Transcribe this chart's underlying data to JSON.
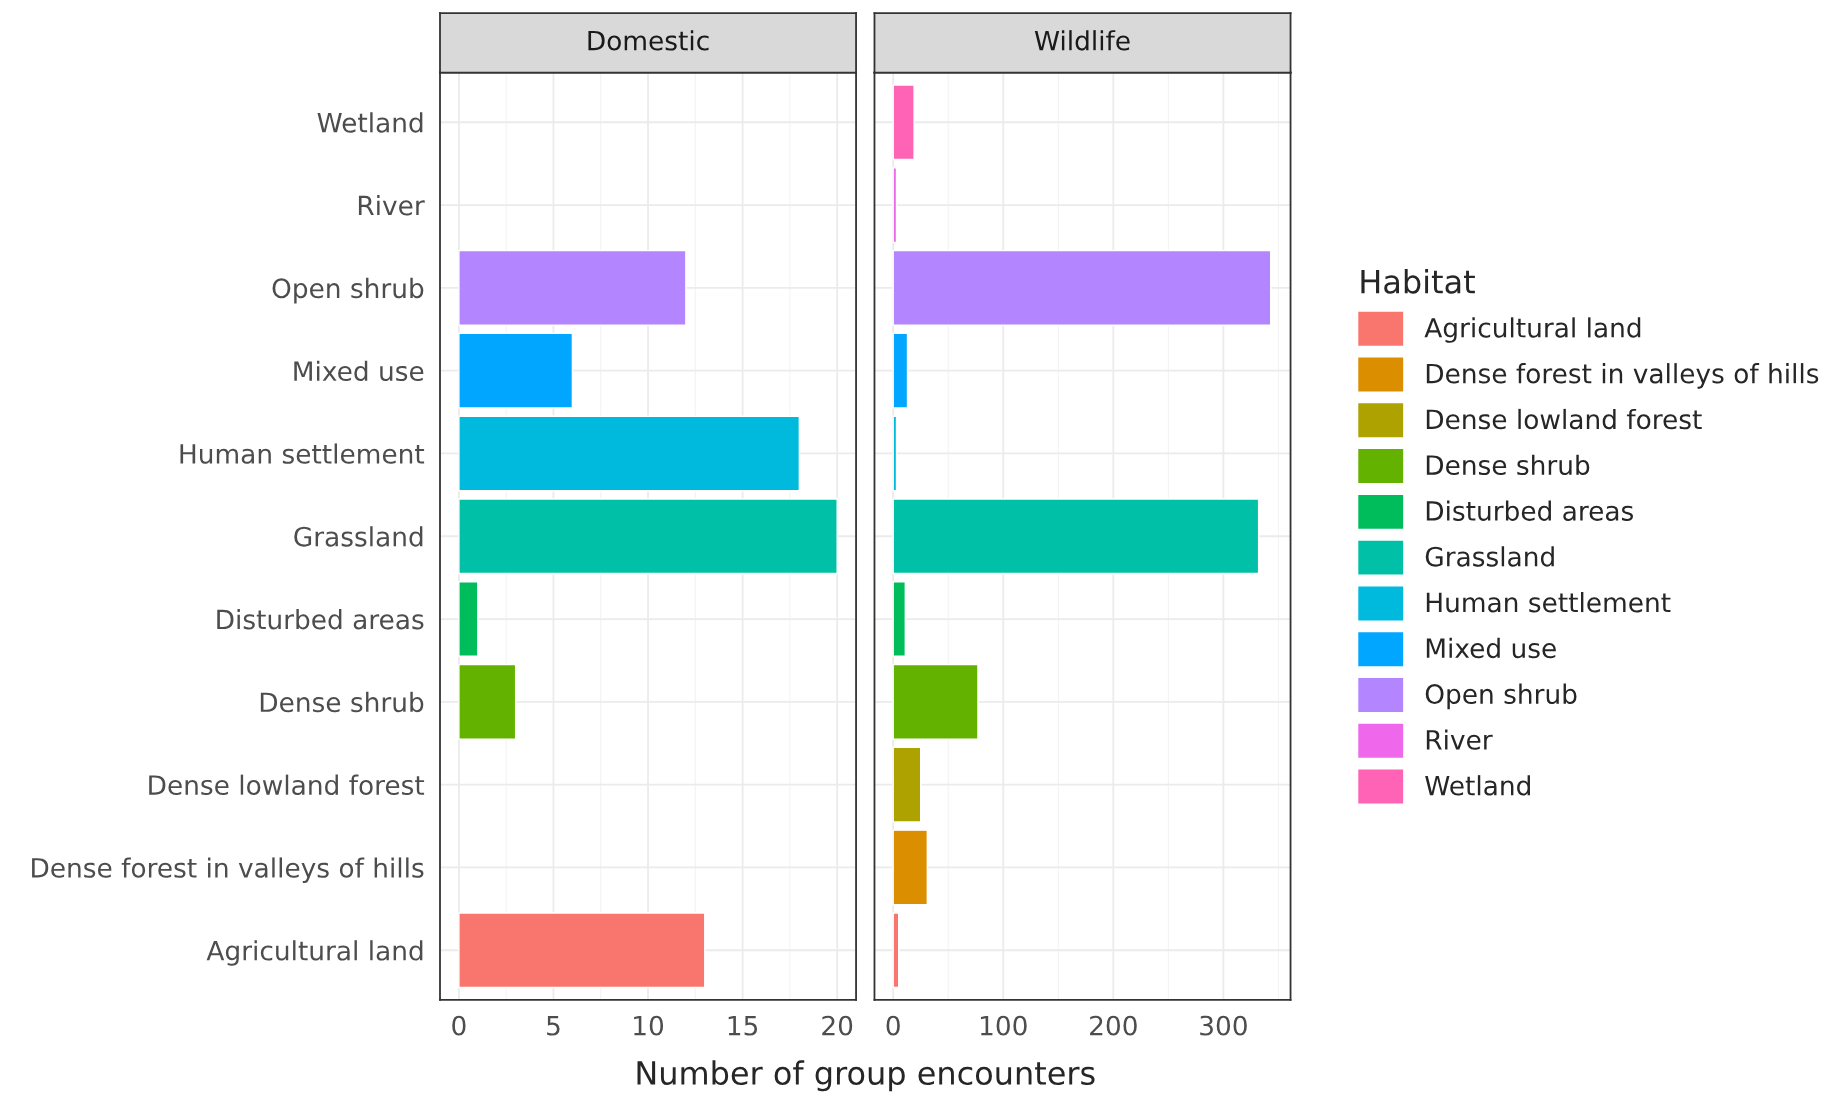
{
  "chart_data": [
    {
      "type": "bar",
      "orientation": "horizontal",
      "title": "Domestic",
      "xlabel": "Number of group encounters",
      "legend_title": "Habitat",
      "legend": "right",
      "categories": [
        "Wetland",
        "River",
        "Open shrub",
        "Mixed use",
        "Human settlement",
        "Grassland",
        "Disturbed areas",
        "Dense shrub",
        "Dense lowland forest",
        "Dense forest in valleys of hills",
        "Agricultural land"
      ],
      "series": [
        {
          "name": "Agricultural land",
          "color": "#F8766D",
          "values": [
            null,
            null,
            null,
            null,
            null,
            null,
            null,
            null,
            null,
            null,
            13
          ]
        },
        {
          "name": "Dense forest in valleys of hills",
          "color": "#DB8E00",
          "values": [
            null,
            null,
            null,
            null,
            null,
            null,
            null,
            null,
            null,
            null,
            null
          ]
        },
        {
          "name": "Dense lowland forest",
          "color": "#AEA200",
          "values": [
            null,
            null,
            null,
            null,
            null,
            null,
            null,
            null,
            null,
            null,
            null
          ]
        },
        {
          "name": "Dense shrub",
          "color": "#64B200",
          "values": [
            null,
            null,
            null,
            null,
            null,
            null,
            null,
            3,
            null,
            null,
            null
          ]
        },
        {
          "name": "Disturbed areas",
          "color": "#00BD5C",
          "values": [
            null,
            null,
            null,
            null,
            null,
            null,
            1,
            null,
            null,
            null,
            null
          ]
        },
        {
          "name": "Grassland",
          "color": "#00C1A7",
          "values": [
            null,
            null,
            null,
            null,
            null,
            20,
            null,
            null,
            null,
            null,
            null
          ]
        },
        {
          "name": "Human settlement",
          "color": "#00BADE",
          "values": [
            null,
            null,
            null,
            null,
            18,
            null,
            null,
            null,
            null,
            null,
            null
          ]
        },
        {
          "name": "Mixed use",
          "color": "#00A6FF",
          "values": [
            null,
            null,
            null,
            6,
            null,
            null,
            null,
            null,
            null,
            null,
            null
          ]
        },
        {
          "name": "Open shrub",
          "color": "#B385FF",
          "values": [
            null,
            null,
            12,
            null,
            null,
            null,
            null,
            null,
            null,
            null,
            null
          ]
        },
        {
          "name": "River",
          "color": "#EF67EB",
          "values": [
            null,
            null,
            null,
            null,
            null,
            null,
            null,
            null,
            null,
            null,
            null
          ]
        },
        {
          "name": "Wetland",
          "color": "#FF63B6",
          "values": [
            null,
            null,
            null,
            null,
            null,
            null,
            null,
            null,
            null,
            null,
            null
          ]
        }
      ],
      "xlim": [
        -1,
        21
      ],
      "xticks": [
        0,
        5,
        10,
        15,
        20
      ],
      "grid": true
    },
    {
      "type": "bar",
      "orientation": "horizontal",
      "title": "Wildlife",
      "tick_labels": "x",
      "series": [
        {
          "color": "#F8766D",
          "values": [
            null,
            null,
            null,
            null,
            null,
            null,
            null,
            null,
            null,
            null,
            5
          ]
        },
        {
          "color": "#DB8E00",
          "values": [
            null,
            null,
            null,
            null,
            null,
            null,
            null,
            null,
            null,
            31,
            null
          ]
        },
        {
          "color": "#AEA200",
          "values": [
            null,
            null,
            null,
            null,
            null,
            null,
            null,
            null,
            25,
            null,
            null
          ]
        },
        {
          "color": "#64B200",
          "values": [
            null,
            null,
            null,
            null,
            null,
            null,
            null,
            77,
            null,
            null,
            null
          ]
        },
        {
          "color": "#00BD5C",
          "values": [
            null,
            null,
            null,
            null,
            null,
            null,
            11,
            null,
            null,
            null,
            null
          ]
        },
        {
          "color": "#00C1A7",
          "values": [
            null,
            null,
            null,
            null,
            null,
            332,
            null,
            null,
            null,
            null,
            null
          ]
        },
        {
          "color": "#00BADE",
          "values": [
            null,
            null,
            null,
            null,
            3,
            null,
            null,
            null,
            null,
            null,
            null
          ]
        },
        {
          "color": "#00A6FF",
          "values": [
            null,
            null,
            null,
            13,
            null,
            null,
            null,
            null,
            null,
            null,
            null
          ]
        },
        {
          "color": "#B385FF",
          "values": [
            null,
            null,
            343,
            null,
            null,
            null,
            null,
            null,
            null,
            null,
            null
          ]
        },
        {
          "color": "#EF67EB",
          "values": [
            null,
            3,
            null,
            null,
            null,
            null,
            null,
            null,
            null,
            null,
            null
          ]
        },
        {
          "color": "#FF63B6",
          "values": [
            19,
            null,
            null,
            null,
            null,
            null,
            null,
            null,
            null,
            null,
            null
          ]
        }
      ],
      "xlim": [
        -17,
        361
      ],
      "xticks": [
        0,
        100,
        200,
        300
      ],
      "grid": true
    }
  ]
}
